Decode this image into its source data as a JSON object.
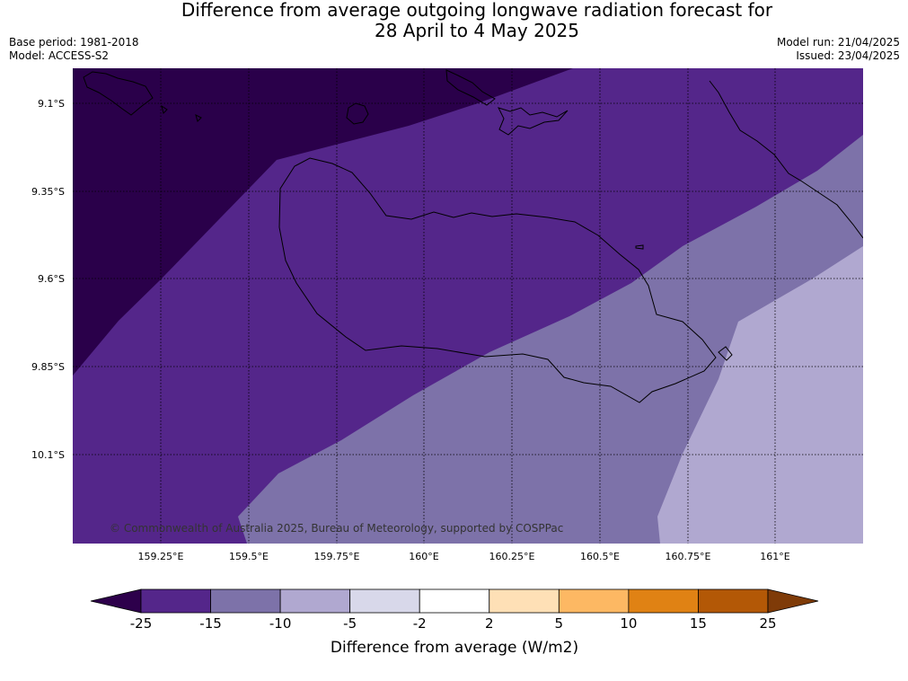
{
  "title": {
    "line1": "Difference from average outgoing longwave radiation forecast for",
    "line2": "28 April to 4 May 2025"
  },
  "meta": {
    "base_period": "Base period: 1981-2018",
    "model": "Model: ACCESS-S2",
    "model_run": "Model run: 21/04/2025",
    "issued": "Issued: 23/04/2025"
  },
  "map": {
    "lat_labels": [
      "9.1°S",
      "9.35°S",
      "9.6°S",
      "9.85°S",
      "10.1°S"
    ],
    "lon_labels": [
      "159.25°E",
      "159.5°E",
      "159.75°E",
      "160°E",
      "160.25°E",
      "160.5°E",
      "160.75°E",
      "161°E"
    ],
    "copyright": "© Commonwealth of Australia 2025, Bureau of Meteorology, supported by COSPPac",
    "zone_colors": [
      "#2a004a",
      "#54268a",
      "#7d72a9",
      "#b0a8d0"
    ]
  },
  "colorbar": {
    "label": "Difference from average (W/m2)",
    "ticks": [
      "-25",
      "-15",
      "-10",
      "-5",
      "-2",
      "2",
      "5",
      "10",
      "15",
      "25"
    ],
    "colors": [
      "#54268a",
      "#7d72a9",
      "#b0a8d0",
      "#d8d8ea",
      "#ffffff",
      "#fee0b6",
      "#fdb863",
      "#e08214",
      "#b35806"
    ],
    "extend_low_color": "#2d004b",
    "extend_high_color": "#7f3b08"
  }
}
